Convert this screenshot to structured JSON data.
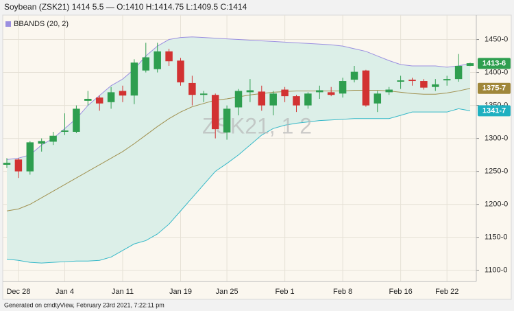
{
  "chart_data": {
    "type": "candlestick",
    "title": "Soybean (ZSK21) 1414 5.5 — O:1410 H:1414.75 L:1409.5 C:1414",
    "watermark": "ZSK21, 1 2",
    "footer": "Generated on cmdtyView, February 23rd 2021, 7:22:11 pm",
    "categories": [
      null,
      null,
      "Dec 28",
      null,
      null,
      null,
      "Jan 4",
      null,
      null,
      null,
      null,
      "Jan 11",
      null,
      null,
      null,
      null,
      "Jan 19",
      null,
      null,
      null,
      "Jan 25",
      null,
      null,
      null,
      null,
      "Feb 1",
      null,
      null,
      null,
      null,
      "Feb 8",
      null,
      null,
      null,
      null,
      "Feb 16",
      null,
      null,
      null,
      "Feb 22",
      null
    ],
    "open": [
      1260,
      1268,
      1250,
      1292,
      1295,
      1310,
      1310,
      1357,
      1362,
      1355,
      1372,
      1365,
      1403,
      1405,
      1432,
      1418,
      1384,
      1366,
      1366,
      1309,
      1347,
      1370,
      1371,
      1350,
      1374,
      1364,
      1350,
      1370,
      1370,
      1368,
      1389,
      1403,
      1353,
      1370,
      1386,
      1389,
      1387,
      1378,
      1388,
      1390,
      1410
    ],
    "high": [
      1270,
      1270,
      1296,
      1300,
      1310,
      1338,
      1350,
      1372,
      1365,
      1378,
      1380,
      1420,
      1445,
      1445,
      1436,
      1422,
      1395,
      1372,
      1368,
      1350,
      1375,
      1390,
      1380,
      1372,
      1378,
      1366,
      1370,
      1380,
      1378,
      1392,
      1410,
      1404,
      1372,
      1378,
      1395,
      1392,
      1390,
      1390,
      1395,
      1428,
      1414.75
    ],
    "low": [
      1255,
      1240,
      1245,
      1280,
      1290,
      1305,
      1308,
      1350,
      1342,
      1345,
      1355,
      1352,
      1400,
      1400,
      1410,
      1380,
      1350,
      1355,
      1300,
      1298,
      1335,
      1355,
      1342,
      1335,
      1355,
      1340,
      1345,
      1360,
      1364,
      1362,
      1385,
      1348,
      1340,
      1366,
      1375,
      1380,
      1374,
      1372,
      1380,
      1386,
      1409.5
    ],
    "close": [
      1263,
      1250,
      1294,
      1296,
      1304,
      1312,
      1345,
      1360,
      1353,
      1370,
      1365,
      1415,
      1423,
      1432,
      1417,
      1385,
      1366,
      1368,
      1314,
      1345,
      1372,
      1373,
      1350,
      1368,
      1364,
      1350,
      1368,
      1373,
      1366,
      1387,
      1401,
      1350,
      1368,
      1374,
      1388,
      1387,
      1377,
      1382,
      1390,
      1410,
      1414
    ],
    "up_color": "#2e9e4f",
    "down_color": "#d23232",
    "indicator": {
      "name": "BBANDS (20, 2)",
      "color": "#9b8fe0",
      "fill": "#dcefe8",
      "upper": {
        "color": "#9b8fe0",
        "label_color": "#2e9e4f",
        "values": [
          1268,
          1270,
          1275,
          1290,
          1300,
          1315,
          1330,
          1350,
          1365,
          1380,
          1390,
          1405,
          1425,
          1440,
          1450,
          1453,
          1454,
          1453,
          1452,
          1451,
          1450,
          1449,
          1448,
          1447,
          1446,
          1445,
          1444,
          1443,
          1442,
          1440,
          1436,
          1432,
          1425,
          1418,
          1412,
          1410,
          1410,
          1410,
          1408,
          1410,
          1413.75
        ],
        "last_label": "1413-6"
      },
      "middle": {
        "color": "#a0904f",
        "label_color": "#a0873a",
        "values": [
          1190,
          1193,
          1200,
          1210,
          1220,
          1230,
          1240,
          1250,
          1260,
          1270,
          1280,
          1292,
          1305,
          1318,
          1330,
          1340,
          1348,
          1353,
          1358,
          1360,
          1363,
          1366,
          1368,
          1370,
          1371,
          1372,
          1372,
          1372,
          1372,
          1372,
          1373,
          1373,
          1373,
          1372,
          1370,
          1368,
          1367,
          1367,
          1369,
          1372,
          1375.875
        ],
        "last_label": "1375-7"
      },
      "lower": {
        "color": "#35b8c8",
        "label_color": "#1fb0c0",
        "values": [
          1117,
          1115,
          1112,
          1111,
          1112,
          1113,
          1114,
          1114,
          1115,
          1120,
          1130,
          1140,
          1145,
          1155,
          1170,
          1190,
          1210,
          1230,
          1250,
          1262,
          1275,
          1290,
          1305,
          1315,
          1320,
          1323,
          1325,
          1327,
          1328,
          1329,
          1330,
          1330,
          1330,
          1330,
          1335,
          1340,
          1340,
          1340,
          1340,
          1345,
          1341.875
        ],
        "last_label": "1341-7"
      }
    },
    "ylim": [
      1083,
      1487
    ],
    "yticks": [
      {
        "value": 1100,
        "label": "1100-0"
      },
      {
        "value": 1150,
        "label": "1150-0"
      },
      {
        "value": 1200,
        "label": "1200-0"
      },
      {
        "value": 1250,
        "label": "1250-0"
      },
      {
        "value": 1300,
        "label": "1300-0"
      },
      {
        "value": 1350,
        "label": "1350-0"
      },
      {
        "value": 1400,
        "label": "1400-0"
      },
      {
        "value": 1450,
        "label": "1450-0"
      }
    ],
    "grid": true
  }
}
